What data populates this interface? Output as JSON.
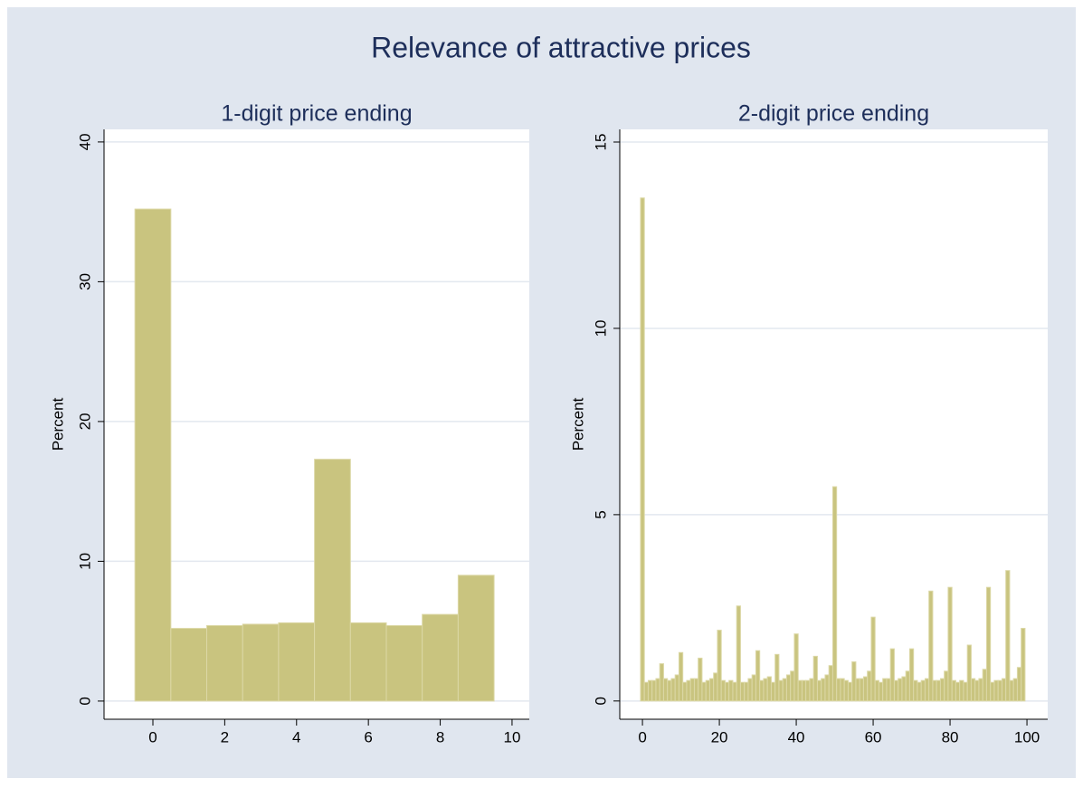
{
  "title": "Relevance of attractive prices",
  "chart_data": [
    {
      "type": "histogram",
      "title": "1-digit price ending",
      "ylabel": "Percent",
      "bins": [
        -0.5,
        0.5,
        1.5,
        2.5,
        3.5,
        4.5,
        5.5,
        6.5,
        7.5,
        8.5,
        9.5
      ],
      "values": [
        35.2,
        5.2,
        5.4,
        5.5,
        5.6,
        17.3,
        5.6,
        5.4,
        6.2,
        9.0
      ],
      "color": "#c9c47f",
      "xlim": [
        -1.36,
        10.48
      ],
      "ylim": [
        -1.3,
        40.9
      ],
      "xticks": [
        0,
        2,
        4,
        6,
        8,
        10
      ],
      "yticks": [
        0,
        10,
        20,
        30,
        40
      ],
      "grid": true
    },
    {
      "type": "histogram",
      "title": "2-digit price ending",
      "ylabel": "Percent",
      "bins": [
        -0.5,
        0.5,
        1.5,
        2.5,
        3.5,
        4.5,
        5.5,
        6.5,
        7.5,
        8.5,
        9.5,
        10.5,
        11.5,
        12.5,
        13.5,
        14.5,
        15.5,
        16.5,
        17.5,
        18.5,
        19.5,
        20.5,
        21.5,
        22.5,
        23.5,
        24.5,
        25.5,
        26.5,
        27.5,
        28.5,
        29.5,
        30.5,
        31.5,
        32.5,
        33.5,
        34.5,
        35.5,
        36.5,
        37.5,
        38.5,
        39.5,
        40.5,
        41.5,
        42.5,
        43.5,
        44.5,
        45.5,
        46.5,
        47.5,
        48.5,
        49.5,
        50.5,
        51.5,
        52.5,
        53.5,
        54.5,
        55.5,
        56.5,
        57.5,
        58.5,
        59.5,
        60.5,
        61.5,
        62.5,
        63.5,
        64.5,
        65.5,
        66.5,
        67.5,
        68.5,
        69.5,
        70.5,
        71.5,
        72.5,
        73.5,
        74.5,
        75.5,
        76.5,
        77.5,
        78.5,
        79.5,
        80.5,
        81.5,
        82.5,
        83.5,
        84.5,
        85.5,
        86.5,
        87.5,
        88.5,
        89.5,
        90.5,
        91.5,
        92.5,
        93.5,
        94.5,
        95.5,
        96.5,
        97.5,
        98.5,
        99.5
      ],
      "values": [
        13.5,
        0.5,
        0.55,
        0.55,
        0.6,
        1.0,
        0.6,
        0.55,
        0.6,
        0.7,
        1.3,
        0.5,
        0.55,
        0.6,
        0.6,
        1.15,
        0.5,
        0.55,
        0.6,
        0.75,
        1.9,
        0.55,
        0.5,
        0.55,
        0.5,
        2.55,
        0.5,
        0.5,
        0.6,
        0.7,
        1.35,
        0.55,
        0.6,
        0.65,
        0.5,
        1.25,
        0.55,
        0.6,
        0.7,
        0.8,
        1.8,
        0.55,
        0.55,
        0.55,
        0.6,
        1.2,
        0.55,
        0.6,
        0.7,
        0.95,
        5.75,
        0.6,
        0.6,
        0.55,
        0.5,
        1.05,
        0.6,
        0.6,
        0.65,
        0.8,
        2.25,
        0.55,
        0.5,
        0.6,
        0.6,
        1.4,
        0.55,
        0.6,
        0.65,
        0.8,
        1.4,
        0.55,
        0.5,
        0.55,
        0.6,
        2.95,
        0.55,
        0.55,
        0.6,
        0.8,
        3.05,
        0.55,
        0.5,
        0.55,
        0.5,
        1.5,
        0.6,
        0.55,
        0.6,
        0.85,
        3.05,
        0.5,
        0.55,
        0.55,
        0.6,
        3.5,
        0.55,
        0.6,
        0.9,
        1.95
      ],
      "color": "#c9c47f",
      "xlim": [
        -5.9,
        105.4
      ],
      "ylim": [
        -0.49,
        15.34
      ],
      "xticks": [
        0,
        20,
        40,
        60,
        80,
        100
      ],
      "yticks": [
        0,
        5,
        10,
        15
      ],
      "grid": true
    }
  ]
}
